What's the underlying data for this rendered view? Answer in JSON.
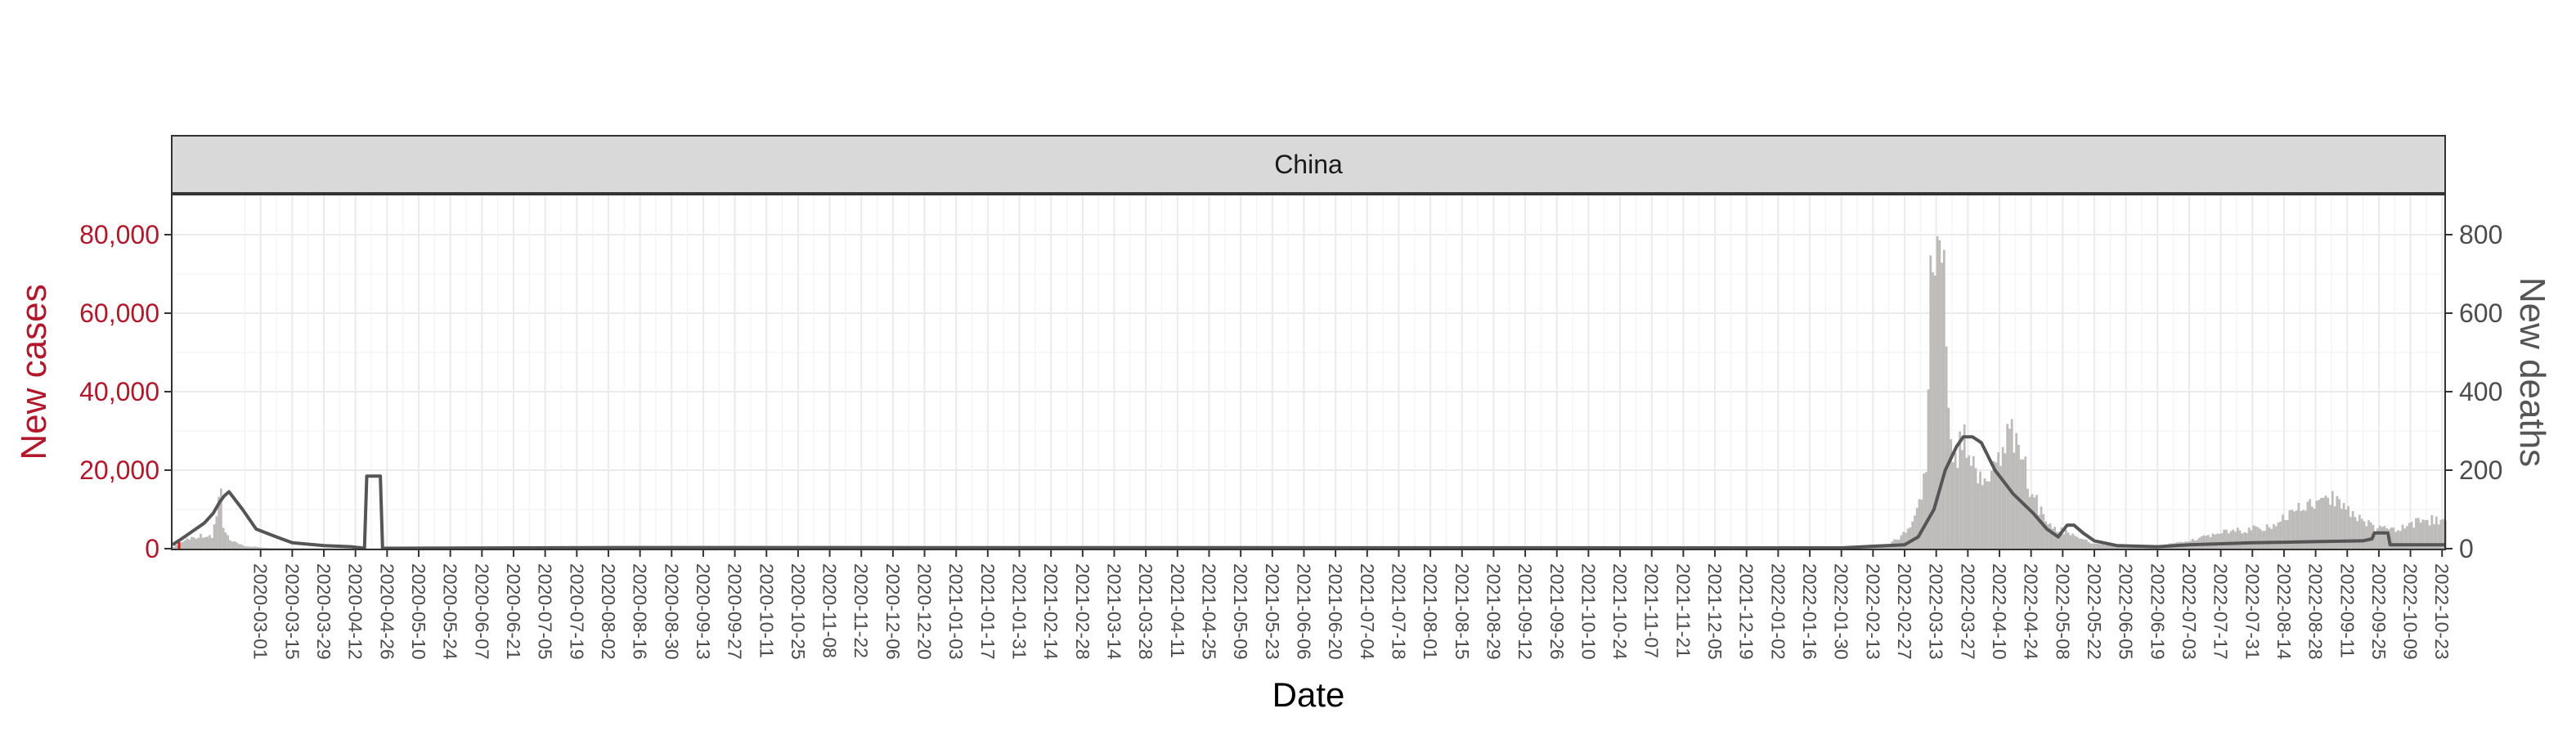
{
  "chart_data": {
    "type": "bar",
    "facet_label": "China",
    "xlabel": "Date",
    "ylabel_left": "New cases",
    "ylabel_right": "New deaths",
    "ylim_left": [
      0,
      90000
    ],
    "ylim_right": [
      0,
      900
    ],
    "yticks_left": [
      {
        "value": 0,
        "label": "0"
      },
      {
        "value": 20000,
        "label": "20,000"
      },
      {
        "value": 40000,
        "label": "40,000"
      },
      {
        "value": 60000,
        "label": "60,000"
      },
      {
        "value": 80000,
        "label": "80,000"
      }
    ],
    "yticks_right": [
      {
        "value": 0,
        "label": "0"
      },
      {
        "value": 200,
        "label": "200"
      },
      {
        "value": 400,
        "label": "400"
      },
      {
        "value": 600,
        "label": "600"
      },
      {
        "value": 800,
        "label": "800"
      }
    ],
    "xlim": [
      "2020-01-22",
      "2022-10-24"
    ],
    "xticks": [
      "2020-03-01",
      "2020-03-15",
      "2020-03-29",
      "2020-04-12",
      "2020-04-26",
      "2020-05-10",
      "2020-05-24",
      "2020-06-07",
      "2020-06-21",
      "2020-07-05",
      "2020-07-19",
      "2020-08-02",
      "2020-08-16",
      "2020-08-30",
      "2020-09-13",
      "2020-09-27",
      "2020-10-11",
      "2020-10-25",
      "2020-11-08",
      "2020-11-22",
      "2020-12-06",
      "2020-12-20",
      "2021-01-03",
      "2021-01-17",
      "2021-01-31",
      "2021-02-14",
      "2021-02-28",
      "2021-03-14",
      "2021-03-28",
      "2021-04-11",
      "2021-04-25",
      "2021-05-09",
      "2021-05-23",
      "2021-06-06",
      "2021-06-20",
      "2021-07-04",
      "2021-07-18",
      "2021-08-01",
      "2021-08-15",
      "2021-08-29",
      "2021-09-12",
      "2021-09-26",
      "2021-10-10",
      "2021-10-24",
      "2021-11-07",
      "2021-11-21",
      "2021-12-05",
      "2021-12-19",
      "2022-01-02",
      "2022-01-16",
      "2022-01-30",
      "2022-02-13",
      "2022-02-27",
      "2022-03-13",
      "2022-03-27",
      "2022-04-10",
      "2022-04-24",
      "2022-05-08",
      "2022-05-22",
      "2022-06-05",
      "2022-06-19",
      "2022-07-03",
      "2022-07-17",
      "2022-07-31",
      "2022-08-14",
      "2022-08-28",
      "2022-09-11",
      "2022-09-25",
      "2022-10-09",
      "2022-10-23"
    ],
    "grid": true,
    "series": [
      {
        "name": "New cases",
        "type": "bar",
        "axis": "left",
        "color": "#bdbaba",
        "anchors": [
          [
            "2020-01-22",
            500
          ],
          [
            "2020-01-28",
            2500
          ],
          [
            "2020-02-04",
            3500
          ],
          [
            "2020-02-08",
            2800
          ],
          [
            "2020-02-12",
            15000
          ],
          [
            "2020-02-13",
            5000
          ],
          [
            "2020-02-16",
            2000
          ],
          [
            "2020-02-22",
            700
          ],
          [
            "2020-03-05",
            100
          ],
          [
            "2020-04-17",
            0
          ],
          [
            "2022-01-30",
            100
          ],
          [
            "2022-02-13",
            300
          ],
          [
            "2022-02-20",
            1200
          ],
          [
            "2022-02-27",
            4000
          ],
          [
            "2022-03-05",
            12000
          ],
          [
            "2022-03-08",
            22000
          ],
          [
            "2022-03-10",
            75000
          ],
          [
            "2022-03-12",
            60000
          ],
          [
            "2022-03-14",
            77000
          ],
          [
            "2022-03-16",
            73000
          ],
          [
            "2022-03-18",
            30000
          ],
          [
            "2022-03-22",
            24000
          ],
          [
            "2022-03-26",
            28000
          ],
          [
            "2022-03-30",
            18000
          ],
          [
            "2022-04-03",
            15000
          ],
          [
            "2022-04-07",
            22000
          ],
          [
            "2022-04-11",
            27000
          ],
          [
            "2022-04-13",
            30000
          ],
          [
            "2022-04-17",
            27000
          ],
          [
            "2022-04-22",
            18000
          ],
          [
            "2022-04-27",
            10000
          ],
          [
            "2022-05-02",
            6000
          ],
          [
            "2022-05-08",
            4500
          ],
          [
            "2022-05-15",
            2500
          ],
          [
            "2022-05-22",
            1200
          ],
          [
            "2022-06-05",
            400
          ],
          [
            "2022-06-19",
            700
          ],
          [
            "2022-07-03",
            2000
          ],
          [
            "2022-07-17",
            4000
          ],
          [
            "2022-07-31",
            5000
          ],
          [
            "2022-08-07",
            5500
          ],
          [
            "2022-08-14",
            8000
          ],
          [
            "2022-08-21",
            10000
          ],
          [
            "2022-08-28",
            12000
          ],
          [
            "2022-09-04",
            12500
          ],
          [
            "2022-09-11",
            10000
          ],
          [
            "2022-09-18",
            7000
          ],
          [
            "2022-09-25",
            5000
          ],
          [
            "2022-10-02",
            4500
          ],
          [
            "2022-10-09",
            6500
          ],
          [
            "2022-10-16",
            7500
          ],
          [
            "2022-10-24",
            6500
          ]
        ]
      },
      {
        "name": "New deaths",
        "type": "line",
        "axis": "right",
        "color": "#555555",
        "points": [
          [
            "2020-01-22",
            10
          ],
          [
            "2020-01-26",
            25
          ],
          [
            "2020-01-31",
            45
          ],
          [
            "2020-02-05",
            65
          ],
          [
            "2020-02-09",
            90
          ],
          [
            "2020-02-12",
            120
          ],
          [
            "2020-02-14",
            135
          ],
          [
            "2020-02-16",
            145
          ],
          [
            "2020-02-18",
            130
          ],
          [
            "2020-02-22",
            100
          ],
          [
            "2020-02-28",
            50
          ],
          [
            "2020-03-08",
            30
          ],
          [
            "2020-03-15",
            15
          ],
          [
            "2020-03-29",
            8
          ],
          [
            "2020-04-10",
            5
          ],
          [
            "2020-04-16",
            1
          ],
          [
            "2020-04-17",
            185
          ],
          [
            "2020-04-23",
            185
          ],
          [
            "2020-04-24",
            1
          ],
          [
            "2020-08-10",
            3
          ],
          [
            "2022-01-30",
            2
          ],
          [
            "2022-02-27",
            10
          ],
          [
            "2022-03-05",
            30
          ],
          [
            "2022-03-12",
            100
          ],
          [
            "2022-03-17",
            200
          ],
          [
            "2022-03-22",
            260
          ],
          [
            "2022-03-25",
            285
          ],
          [
            "2022-03-29",
            285
          ],
          [
            "2022-04-02",
            270
          ],
          [
            "2022-04-08",
            200
          ],
          [
            "2022-04-16",
            140
          ],
          [
            "2022-04-25",
            90
          ],
          [
            "2022-05-01",
            50
          ],
          [
            "2022-05-06",
            30
          ],
          [
            "2022-05-10",
            60
          ],
          [
            "2022-05-13",
            60
          ],
          [
            "2022-05-17",
            40
          ],
          [
            "2022-05-22",
            20
          ],
          [
            "2022-06-01",
            8
          ],
          [
            "2022-06-19",
            5
          ],
          [
            "2022-07-03",
            10
          ],
          [
            "2022-07-31",
            15
          ],
          [
            "2022-08-28",
            18
          ],
          [
            "2022-09-18",
            20
          ],
          [
            "2022-09-22",
            25
          ],
          [
            "2022-09-23",
            40
          ],
          [
            "2022-09-29",
            40
          ],
          [
            "2022-09-30",
            10
          ],
          [
            "2022-10-24",
            10
          ]
        ]
      }
    ],
    "annotations": [
      {
        "type": "marker",
        "x": "2020-01-22",
        "y": 0,
        "color": "#e31a1c"
      }
    ]
  }
}
